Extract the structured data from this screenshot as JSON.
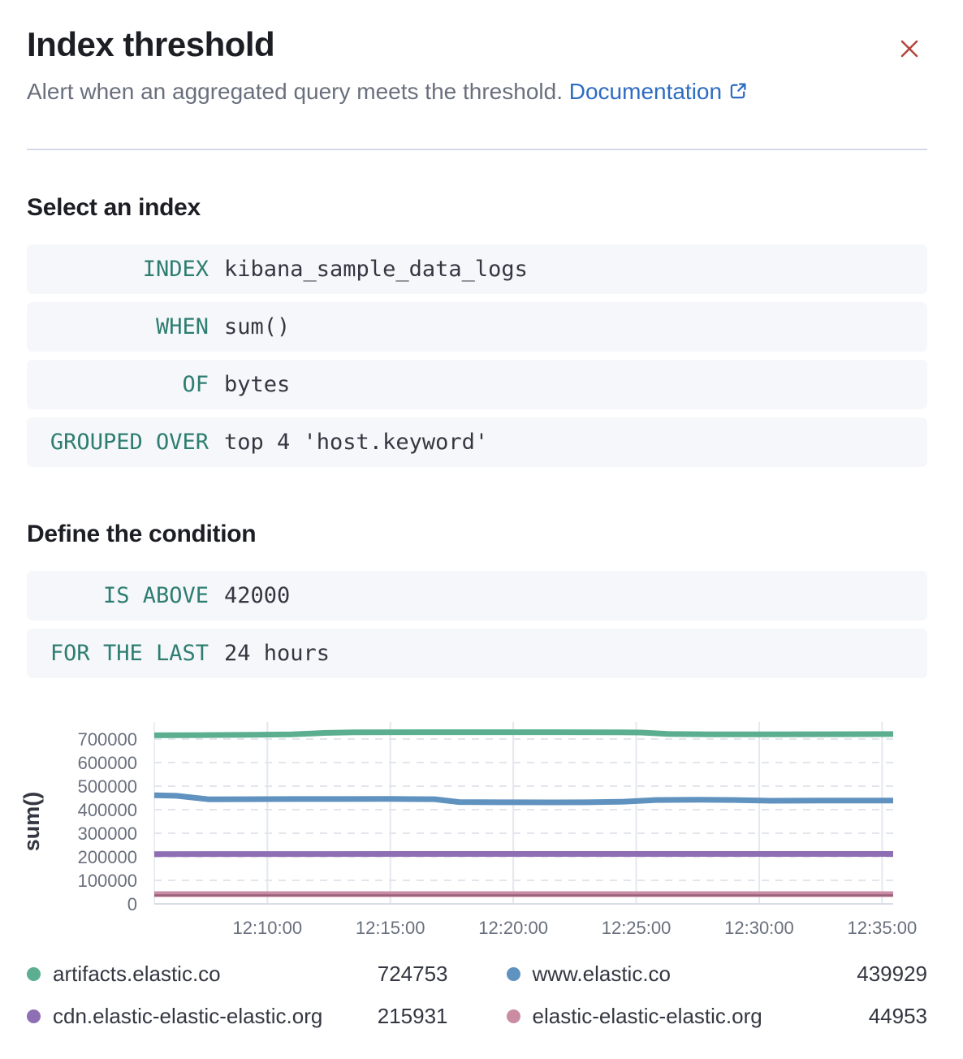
{
  "header": {
    "title": "Index threshold",
    "subtitle": "Alert when an aggregated query meets the threshold.",
    "doc_link_label": "Documentation"
  },
  "colors": {
    "heading_text": "#1d1e24",
    "body_text": "#343741",
    "muted_text": "#69707d",
    "link_blue": "#2e6cc0",
    "close_red": "#b2473e",
    "keyword_teal": "#2e7d71",
    "expression_bg": "#f5f7fa",
    "divider": "#d3dae6"
  },
  "sections": [
    {
      "heading": "Select an index",
      "expressions": [
        {
          "keyword": "INDEX",
          "value": "kibana_sample_data_logs"
        },
        {
          "keyword": "WHEN",
          "value": "sum()"
        },
        {
          "keyword": "OF",
          "value": "bytes"
        },
        {
          "keyword": "GROUPED OVER",
          "value": "top 4 'host.keyword'"
        }
      ]
    },
    {
      "heading": "Define the condition",
      "expressions": [
        {
          "keyword": "IS ABOVE",
          "value": "42000"
        },
        {
          "keyword": "FOR THE LAST",
          "value": "24 hours"
        }
      ]
    }
  ],
  "chart_data": {
    "type": "line",
    "ylabel": "sum()",
    "xlabel": "",
    "ylim": [
      0,
      760000
    ],
    "y_ticks": [
      0,
      100000,
      200000,
      300000,
      400000,
      500000,
      600000,
      700000
    ],
    "x_domain_minutes_after_12h": [
      5.4,
      35.45
    ],
    "x_ticks": [
      {
        "m": 10,
        "label": "12:10:00"
      },
      {
        "m": 15,
        "label": "12:15:00"
      },
      {
        "m": 20,
        "label": "12:20:00"
      },
      {
        "m": 25,
        "label": "12:25:00"
      },
      {
        "m": 30,
        "label": "12:30:00"
      },
      {
        "m": 35,
        "label": "12:35:00"
      }
    ],
    "grid": {
      "vertical": "solid",
      "horizontal": "dashed"
    },
    "legend_position": "bottom",
    "series": [
      {
        "name": "artifacts.elastic.co",
        "color": "#5cae90",
        "latest": 724753,
        "points": [
          [
            5.4,
            716000
          ],
          [
            7,
            716500
          ],
          [
            9.5,
            718000
          ],
          [
            11,
            719500
          ],
          [
            12.3,
            726000
          ],
          [
            13.5,
            728500
          ],
          [
            16,
            729000
          ],
          [
            19,
            729000
          ],
          [
            22,
            729000
          ],
          [
            24,
            728500
          ],
          [
            25.2,
            727500
          ],
          [
            26.3,
            721500
          ],
          [
            28,
            719500
          ],
          [
            30,
            719800
          ],
          [
            32.5,
            720500
          ],
          [
            35.45,
            721000
          ]
        ]
      },
      {
        "name": "www.elastic.co",
        "color": "#6092c0",
        "latest": 439929,
        "points": [
          [
            5.4,
            461000
          ],
          [
            6.3,
            459000
          ],
          [
            7.6,
            444000
          ],
          [
            9,
            444500
          ],
          [
            11,
            445000
          ],
          [
            13,
            445000
          ],
          [
            15,
            445500
          ],
          [
            16.8,
            444500
          ],
          [
            17.8,
            432500
          ],
          [
            19.5,
            431500
          ],
          [
            21.5,
            431000
          ],
          [
            23,
            431500
          ],
          [
            24.5,
            434000
          ],
          [
            25.8,
            441000
          ],
          [
            27.5,
            442500
          ],
          [
            29,
            441000
          ],
          [
            30.5,
            438000
          ],
          [
            32.5,
            438500
          ],
          [
            35.45,
            439000
          ]
        ]
      },
      {
        "name": "cdn.elastic-elastic-elastic.org",
        "color": "#8f6fb3",
        "latest": 215931,
        "points": [
          [
            5.4,
            211500
          ],
          [
            20,
            212000
          ],
          [
            35.45,
            212000
          ]
        ]
      },
      {
        "name": "elastic-elastic-elastic.org",
        "color": "#c98ca3",
        "core_color": "#99607a",
        "latest": 44953,
        "points": [
          [
            5.4,
            41500
          ],
          [
            20,
            41500
          ],
          [
            35.45,
            41500
          ]
        ]
      }
    ]
  }
}
